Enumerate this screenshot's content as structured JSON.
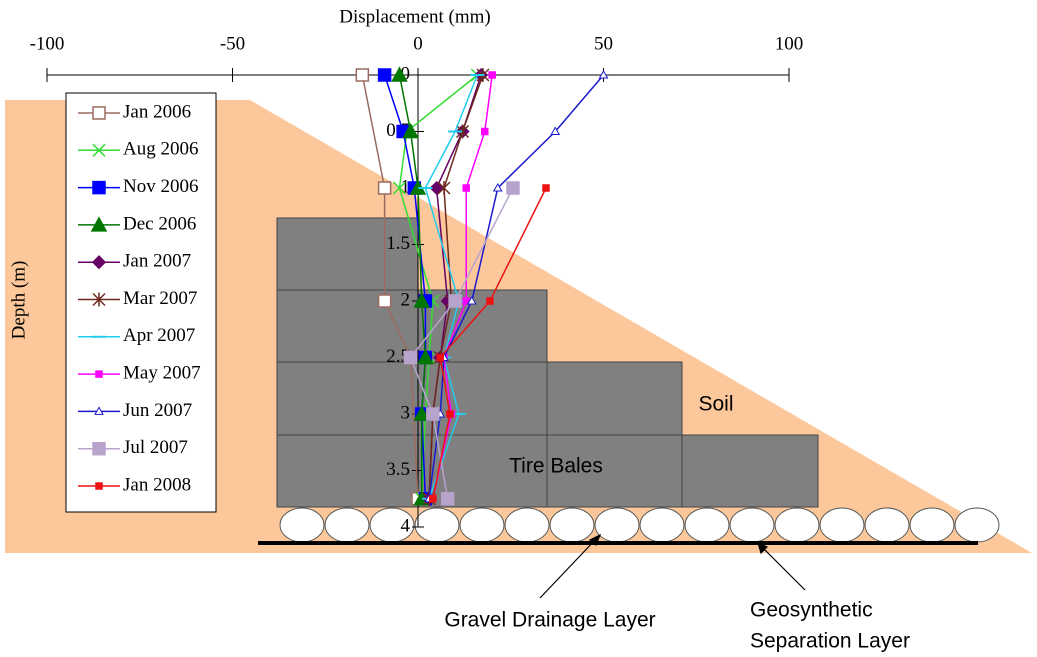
{
  "chart_data": {
    "type": "line",
    "xlabel": "Displacement (mm)",
    "ylabel": "Depth (m)",
    "xlim": [
      -100,
      100
    ],
    "xticks": [
      -100,
      -50,
      0,
      50,
      100
    ],
    "ylim": [
      0,
      4
    ],
    "yticks": [
      0,
      0.5,
      1,
      1.5,
      2,
      2.5,
      3,
      3.5,
      4
    ],
    "series": [
      {
        "name": "Jan 2006",
        "color": "#9c6b5f",
        "marker": "square-open",
        "x": [
          -15,
          -9,
          -9,
          -2,
          0
        ],
        "y": [
          0,
          1,
          2,
          2.5,
          3.75
        ]
      },
      {
        "name": "Aug 2006",
        "color": "#33dd33",
        "marker": "x",
        "x": [
          16,
          -3,
          -5,
          4,
          3,
          2,
          1
        ],
        "y": [
          0,
          0.5,
          1,
          2,
          2.5,
          3,
          3.75
        ]
      },
      {
        "name": "Nov 2006",
        "color": "#0000ff",
        "marker": "square",
        "x": [
          -9,
          -4,
          -1,
          2,
          2,
          1,
          2
        ],
        "y": [
          0,
          0.5,
          1,
          2,
          2.5,
          3,
          3.75
        ]
      },
      {
        "name": "Dec 2006",
        "color": "#007700",
        "marker": "triangle",
        "x": [
          -5,
          -2,
          0,
          1,
          2,
          1,
          1
        ],
        "y": [
          0,
          0.5,
          1,
          2,
          2.5,
          3,
          3.75
        ]
      },
      {
        "name": "Jan 2007",
        "color": "#660066",
        "marker": "diamond",
        "x": [
          17,
          12,
          5,
          8,
          6,
          4,
          3
        ],
        "y": [
          0,
          0.5,
          1,
          2,
          2.5,
          3,
          3.75
        ]
      },
      {
        "name": "Mar 2007",
        "color": "#6e2a1e",
        "marker": "asterisk",
        "x": [
          17.5,
          12,
          7,
          9,
          6,
          4,
          3
        ],
        "y": [
          0,
          0.5,
          1,
          2,
          2.5,
          3,
          3.75
        ]
      },
      {
        "name": "Apr 2007",
        "color": "#22ccee",
        "marker": "dash",
        "x": [
          16,
          10,
          2,
          11,
          7,
          11,
          3
        ],
        "y": [
          0,
          0.5,
          1,
          2,
          2.5,
          3,
          3.75
        ]
      },
      {
        "name": "May 2007",
        "color": "#ff00ff",
        "marker": "small-square",
        "x": [
          20,
          18,
          13,
          13,
          7,
          9,
          4
        ],
        "y": [
          0,
          0.5,
          1,
          2,
          2.5,
          3,
          3.75
        ]
      },
      {
        "name": "Jun 2007",
        "color": "#1a1acc",
        "marker": "triangle-open",
        "x": [
          50,
          37,
          21.5,
          14.5,
          7,
          6,
          3
        ],
        "y": [
          0,
          0.5,
          1,
          2,
          2.5,
          3,
          3.75
        ]
      },
      {
        "name": "Jul 2007",
        "color": "#b7a3cc",
        "marker": "square",
        "x": [
          25.6,
          10,
          -2,
          4,
          8
        ],
        "y": [
          1,
          2,
          2.5,
          3,
          3.75
        ]
      },
      {
        "name": "Jan 2008",
        "color": "#ee1111",
        "marker": "small-square",
        "x": [
          34.5,
          19.4,
          6,
          8.6,
          4
        ],
        "y": [
          1,
          2,
          2.5,
          3,
          3.75
        ]
      }
    ],
    "annotations": [
      "Soil",
      "Tire Bales",
      "Gravel Drainage Layer",
      "Geosynthetic",
      "Separation Layer"
    ]
  }
}
